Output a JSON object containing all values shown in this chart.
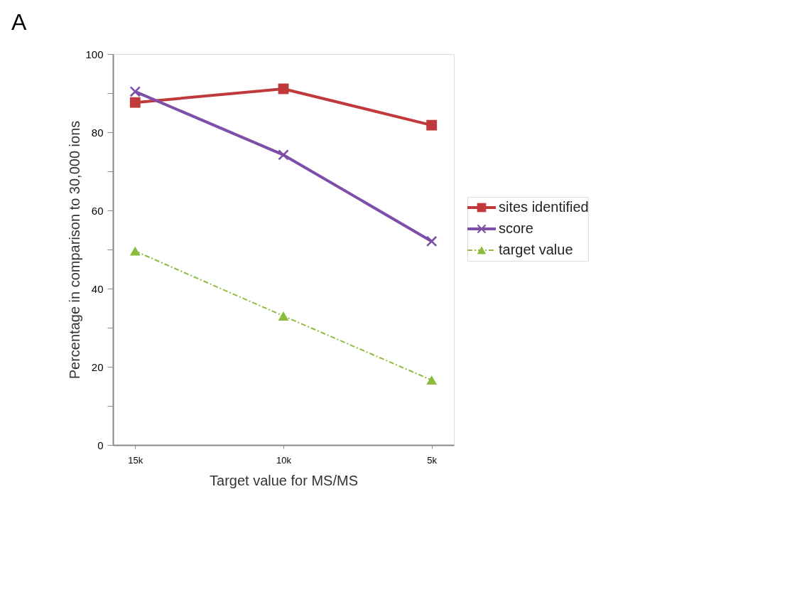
{
  "chart_data": {
    "type": "line",
    "title": "A",
    "xlabel": "Target value for MS/MS",
    "ylabel": "Percentage in comparison to 30,000 ions",
    "categories": [
      "15k",
      "10k",
      "5k"
    ],
    "series": [
      {
        "name": "sites identified",
        "color": "#c0393b",
        "values": [
          87.6,
          91.1,
          81.8
        ],
        "marker": "square",
        "line_style": "solid"
      },
      {
        "name": "score",
        "color": "#7d4fa8",
        "values": [
          90.4,
          74.2,
          52.1
        ],
        "marker": "cross",
        "line_style": "solid"
      },
      {
        "name": "target value",
        "color": "#8cbc3c",
        "values": [
          49.6,
          33.0,
          16.6
        ],
        "marker": "triangle",
        "line_style": "dashed"
      }
    ],
    "ylim": [
      0,
      100
    ],
    "yticks": [
      0,
      {
        "value": 10,
        "label": null
      },
      20,
      {
        "value": 30,
        "label": null
      },
      40,
      {
        "value": 50,
        "label": null
      },
      60,
      {
        "value": 70,
        "label": null
      },
      80,
      {
        "value": 90,
        "label": null
      },
      100
    ],
    "grid": false,
    "legend": "right"
  }
}
